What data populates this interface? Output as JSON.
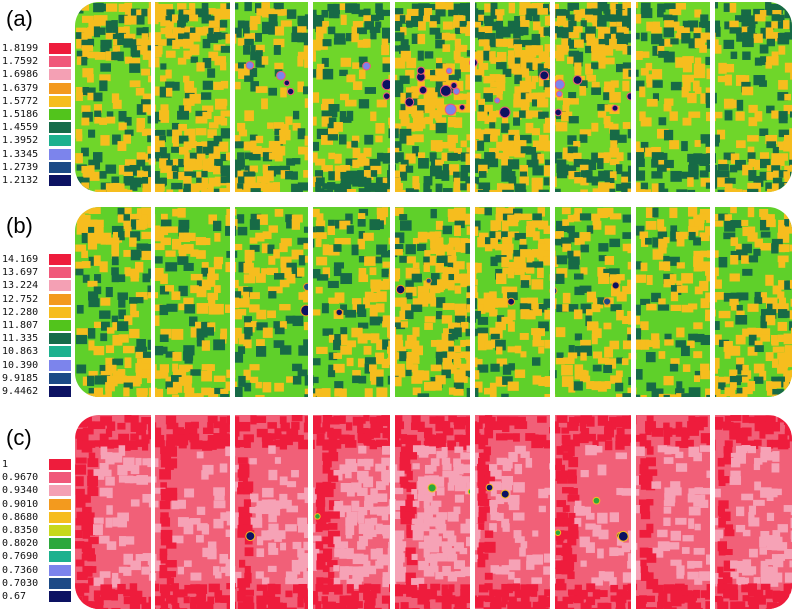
{
  "panels": [
    {
      "label": "(a)",
      "legend": [
        {
          "value": "1.8199",
          "color": "#ee1c3c"
        },
        {
          "value": "1.7592",
          "color": "#f0587a"
        },
        {
          "value": "1.6986",
          "color": "#f4a0b4"
        },
        {
          "value": "1.6379",
          "color": "#f39a1e"
        },
        {
          "value": "1.5772",
          "color": "#f6bd1e"
        },
        {
          "value": "1.5186",
          "color": "#52c41c"
        },
        {
          "value": "1.4559",
          "color": "#166c4a"
        },
        {
          "value": "1.3952",
          "color": "#1cb18e"
        },
        {
          "value": "1.3345",
          "color": "#7c84ec"
        },
        {
          "value": "1.2739",
          "color": "#1c4a86"
        },
        {
          "value": "1.2132",
          "color": "#0c1262"
        }
      ],
      "palette": {
        "base": "#6fd62a",
        "alt": "#f6bd1e",
        "dark": "#176a46",
        "spot": "#0c1262",
        "spot2": "#7c84ec",
        "hot": "#f0587a"
      }
    },
    {
      "label": "(b)",
      "legend": [
        {
          "value": "14.169",
          "color": "#ee1c3c"
        },
        {
          "value": "13.697",
          "color": "#f0587a"
        },
        {
          "value": "13.224",
          "color": "#f4a0b4"
        },
        {
          "value": "12.752",
          "color": "#f39a1e"
        },
        {
          "value": "12.280",
          "color": "#f6bd1e"
        },
        {
          "value": "11.807",
          "color": "#52c41c"
        },
        {
          "value": "11.335",
          "color": "#166c4a"
        },
        {
          "value": "10.863",
          "color": "#1cb18e"
        },
        {
          "value": "10.390",
          "color": "#7c84ec"
        },
        {
          "value": "9.9185",
          "color": "#1c4a86"
        },
        {
          "value": "9.4462",
          "color": "#0c1262"
        }
      ],
      "palette": {
        "base": "#5fd02a",
        "alt": "#f6bd1e",
        "dark": "#176a46",
        "spot": "#0c1262",
        "spot2": "#1c4a86",
        "hot": "#f39a1e"
      }
    },
    {
      "label": "(c)",
      "legend": [
        {
          "value": "1",
          "color": "#ee1c3c"
        },
        {
          "value": "0.9670",
          "color": "#f0587a"
        },
        {
          "value": "0.9340",
          "color": "#f4a0b4"
        },
        {
          "value": "0.9010",
          "color": "#f39a1e"
        },
        {
          "value": "0.8680",
          "color": "#f6bd1e"
        },
        {
          "value": "0.8350",
          "color": "#c8d81c"
        },
        {
          "value": "0.8020",
          "color": "#2ca83c"
        },
        {
          "value": "0.7690",
          "color": "#1cb18e"
        },
        {
          "value": "0.7360",
          "color": "#7c84ec"
        },
        {
          "value": "0.7030",
          "color": "#1c4a86"
        },
        {
          "value": "0.67",
          "color": "#0c1262"
        }
      ],
      "palette": {
        "base": "#f16078",
        "alt": "#f6a2b6",
        "dark": "#ee1c3c",
        "spot": "#0c1262",
        "spot2": "#2ca83c",
        "hot": "#f6bd1e"
      }
    }
  ]
}
